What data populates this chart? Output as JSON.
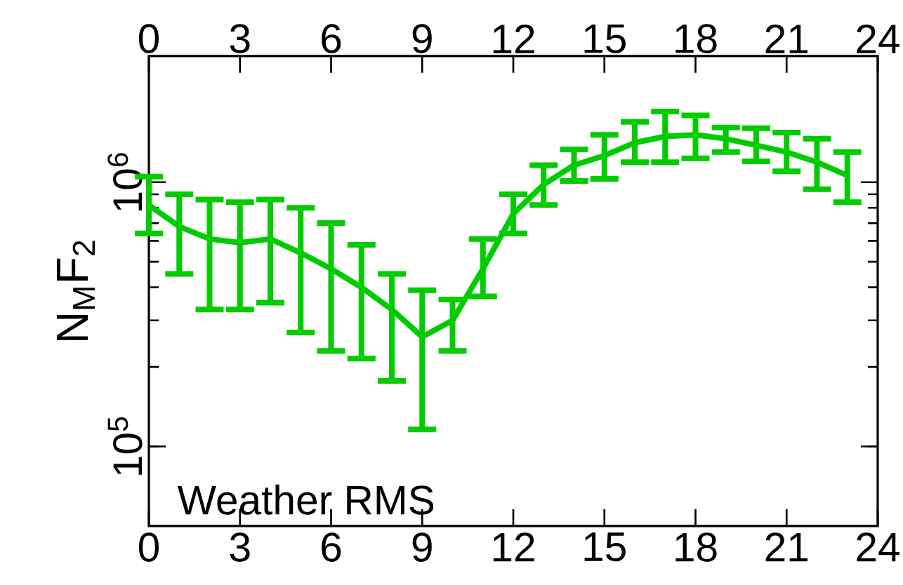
{
  "chart_data": {
    "type": "line",
    "ylabel": "N$_{M}$F$_{2}$",
    "annotations": [
      "Weather RMS"
    ],
    "x": [
      0,
      1,
      2,
      3,
      4,
      5,
      6,
      7,
      8,
      9,
      10,
      11,
      12,
      13,
      14,
      15,
      16,
      17,
      18,
      19,
      20,
      21,
      22,
      23
    ],
    "series": [
      {
        "color": "#00cc00",
        "values": [
          820000,
          680000,
          610000,
          590000,
          610000,
          540000,
          470000,
          400000,
          330000,
          260000,
          300000,
          470000,
          760000,
          980000,
          1160000,
          1260000,
          1410000,
          1490000,
          1510000,
          1460000,
          1380000,
          1300000,
          1190000,
          1060000
        ],
        "errors": [
          [
            640000,
            1050000
          ],
          [
            450000,
            900000
          ],
          [
            330000,
            860000
          ],
          [
            330000,
            840000
          ],
          [
            350000,
            860000
          ],
          [
            270000,
            800000
          ],
          [
            230000,
            700000
          ],
          [
            215000,
            580000
          ],
          [
            177000,
            450000
          ],
          [
            116000,
            390000
          ],
          [
            230000,
            360000
          ],
          [
            370000,
            610000
          ],
          [
            640000,
            900000
          ],
          [
            820000,
            1160000
          ],
          [
            1010000,
            1330000
          ],
          [
            1030000,
            1510000
          ],
          [
            1190000,
            1690000
          ],
          [
            1190000,
            1850000
          ],
          [
            1230000,
            1790000
          ],
          [
            1300000,
            1610000
          ],
          [
            1200000,
            1600000
          ],
          [
            1100000,
            1540000
          ],
          [
            940000,
            1460000
          ],
          [
            840000,
            1300000
          ]
        ]
      }
    ],
    "xlim": [
      0,
      24
    ],
    "xticks": [
      0,
      3,
      6,
      9,
      12,
      15,
      18,
      21,
      24
    ],
    "x2lim": [
      0,
      24
    ],
    "x2ticks": [
      0,
      3,
      6,
      9,
      12,
      15,
      18,
      21,
      24
    ],
    "ylim": [
      50000,
      3000000
    ],
    "yticks": [
      {
        "value": 100000,
        "label": "10$^{5}$"
      },
      {
        "value": 1000000,
        "label": "10$^{6}$"
      }
    ],
    "log": "y"
  }
}
